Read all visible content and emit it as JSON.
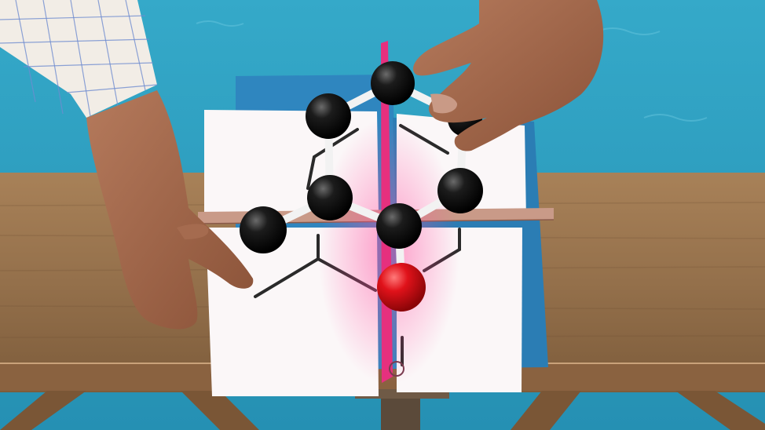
{
  "scene": {
    "subject": "molecular-model-with-symmetry-planes",
    "atoms": [
      {
        "element": "C",
        "color": "#111111"
      },
      {
        "element": "C",
        "color": "#111111"
      },
      {
        "element": "C",
        "color": "#111111"
      },
      {
        "element": "C",
        "color": "#111111"
      },
      {
        "element": "C",
        "color": "#111111"
      },
      {
        "element": "C",
        "color": "#111111"
      },
      {
        "element": "C",
        "color": "#111111"
      },
      {
        "element": "O",
        "color": "#d40f14"
      }
    ],
    "colors": {
      "background_water": "#2a9fc0",
      "table_wood": "#9c7650",
      "plane_blue": "#2f86bf",
      "plane_pink": "#e6307e",
      "paper": "#fbf7f8",
      "bond": "#f2f2f2"
    }
  }
}
